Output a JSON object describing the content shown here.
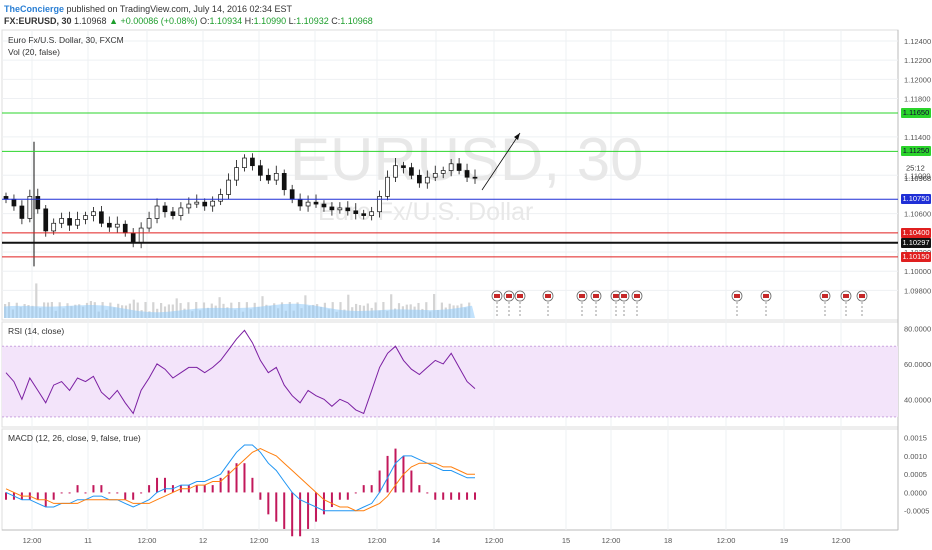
{
  "header": {
    "author": "TheConcierge",
    "published": " published on TradingView.com, July 14, 2016 02:34 EST",
    "symbol": "FX:EURUSD, 30",
    "last": " 1.10968 ",
    "change": "▲ +0.00086 (+0.08%)",
    "o_label": " O:",
    "o_val": "1.10934",
    "h_label": " H:",
    "h_val": "1.10990",
    "l_label": " L:",
    "l_val": "1.10932",
    "c_label": " C:",
    "c_val": "1.10968"
  },
  "main_pane": {
    "title": "Euro Fx/U.S. Dollar, 30, FXCM",
    "vol_label": "Vol (20, false)",
    "watermark_symbol": "EURUSD, 30",
    "watermark_name": "Euro Fx/U.S. Dollar",
    "price_axis": [
      "1.12400",
      "1.12200",
      "1.12000",
      "1.11800",
      "1.11400",
      "1.11000",
      "1.10600",
      "1.10200",
      "1.10000",
      "1.09800"
    ],
    "countdown": "25:12",
    "current_price": "1.10968",
    "levels": [
      {
        "label": "1.11650",
        "value": 1.1165,
        "color": "#2bd42b"
      },
      {
        "label": "1.11250",
        "value": 1.1125,
        "color": "#2bd42b"
      },
      {
        "label": "1.10750",
        "value": 1.1075,
        "color": "#1f2fd6"
      },
      {
        "label": "1.10400",
        "value": 1.104,
        "color": "#e01f1f"
      },
      {
        "label": "1.10297",
        "value": 1.10297,
        "color": "#111111"
      },
      {
        "label": "1.10150",
        "value": 1.1015,
        "color": "#e01f1f"
      }
    ]
  },
  "rsi_pane": {
    "title": "RSI (14, close)",
    "axis": [
      "80.0000",
      "60.0000",
      "40.0000"
    ],
    "band_upper": 70,
    "band_lower": 30
  },
  "macd_pane": {
    "title": "MACD (12, 26, close, 9, false, true)",
    "axis": [
      "0.0015",
      "0.0010",
      "0.0005",
      "0.0000",
      "-0.0005"
    ]
  },
  "time_axis": [
    "12:00",
    "11",
    "12:00",
    "12",
    "12:00",
    "13",
    "12:00",
    "14",
    "12:00",
    "15",
    "12:00",
    "18",
    "12:00",
    "19",
    "12:00"
  ],
  "colors": {
    "up_candle": "#111111",
    "macd_line": "#2196f3",
    "signal_line": "#ff7f0e",
    "histogram": "#c2185b",
    "rsi_line": "#7b1fa2",
    "rsi_band": "#f3e4fa",
    "volume": "#90caf9"
  },
  "chart_data": {
    "type": "candlestick",
    "series": [
      {
        "name": "EURUSD close",
        "values": [
          1.1075,
          1.1068,
          1.1055,
          1.1078,
          1.1065,
          1.1042,
          1.105,
          1.1055,
          1.1048,
          1.1054,
          1.1058,
          1.1062,
          1.105,
          1.1046,
          1.1049,
          1.104,
          1.103,
          1.1045,
          1.1055,
          1.1068,
          1.1062,
          1.1058,
          1.1066,
          1.107,
          1.1072,
          1.1068,
          1.1073,
          1.108,
          1.1095,
          1.1108,
          1.1118,
          1.111,
          1.11,
          1.1095,
          1.1102,
          1.1085,
          1.1075,
          1.1068,
          1.1072,
          1.107,
          1.1067,
          1.1064,
          1.1066,
          1.1063,
          1.106,
          1.1058,
          1.1062,
          1.1078,
          1.1098,
          1.111,
          1.1108,
          1.11,
          1.1092,
          1.1098,
          1.1102,
          1.1105,
          1.1112,
          1.1105,
          1.1098,
          1.1097
        ]
      },
      {
        "name": "RSI",
        "values": [
          55,
          50,
          40,
          52,
          45,
          38,
          48,
          50,
          45,
          52,
          50,
          53,
          44,
          40,
          45,
          38,
          32,
          45,
          52,
          60,
          57,
          52,
          55,
          58,
          58,
          55,
          58,
          62,
          68,
          74,
          79,
          72,
          62,
          55,
          58,
          48,
          42,
          38,
          45,
          42,
          40,
          36,
          40,
          38,
          34,
          32,
          45,
          58,
          66,
          70,
          62,
          57,
          54,
          58,
          62,
          60,
          66,
          58,
          50,
          46
        ]
      },
      {
        "name": "MACD",
        "values": [
          0.0,
          -0.0001,
          -0.0002,
          -0.0002,
          -0.0003,
          -0.0004,
          -0.0004,
          -0.0003,
          -0.0003,
          -0.0002,
          -0.0002,
          -0.0001,
          -0.0001,
          -0.0002,
          -0.0002,
          -0.0003,
          -0.0004,
          -0.0003,
          -0.0002,
          0.0,
          0.0001,
          0.0001,
          0.0002,
          0.0002,
          0.0003,
          0.0003,
          0.0004,
          0.0005,
          0.0008,
          0.0011,
          0.0013,
          0.0013,
          0.0011,
          0.0008,
          0.0006,
          0.0003,
          0.0,
          -0.0002,
          -0.0003,
          -0.0004,
          -0.0005,
          -0.0005,
          -0.0005,
          -0.0005,
          -0.0005,
          -0.0004,
          -0.0003,
          0.0,
          0.0004,
          0.0008,
          0.001,
          0.001,
          0.0009,
          0.0008,
          0.0007,
          0.0006,
          0.0006,
          0.0005,
          0.0004,
          0.0004
        ]
      },
      {
        "name": "Signal",
        "values": [
          0.0001,
          0.0,
          -0.0001,
          -0.0001,
          -0.0002,
          -0.0002,
          -0.0003,
          -0.0003,
          -0.0003,
          -0.0003,
          -0.0002,
          -0.0002,
          -0.0002,
          -0.0002,
          -0.0002,
          -0.0002,
          -0.0003,
          -0.0003,
          -0.0003,
          -0.0002,
          -0.0001,
          0.0,
          0.0001,
          0.0001,
          0.0002,
          0.0002,
          0.0003,
          0.0003,
          0.0005,
          0.0007,
          0.0009,
          0.0011,
          0.0012,
          0.0011,
          0.001,
          0.0008,
          0.0006,
          0.0004,
          0.0002,
          0.0,
          -0.0002,
          -0.0003,
          -0.0004,
          -0.0004,
          -0.0005,
          -0.0005,
          -0.0004,
          -0.0003,
          -0.0001,
          0.0002,
          0.0005,
          0.0007,
          0.0008,
          0.0008,
          0.0008,
          0.0007,
          0.0007,
          0.0006,
          0.0005,
          0.0005
        ]
      }
    ]
  }
}
